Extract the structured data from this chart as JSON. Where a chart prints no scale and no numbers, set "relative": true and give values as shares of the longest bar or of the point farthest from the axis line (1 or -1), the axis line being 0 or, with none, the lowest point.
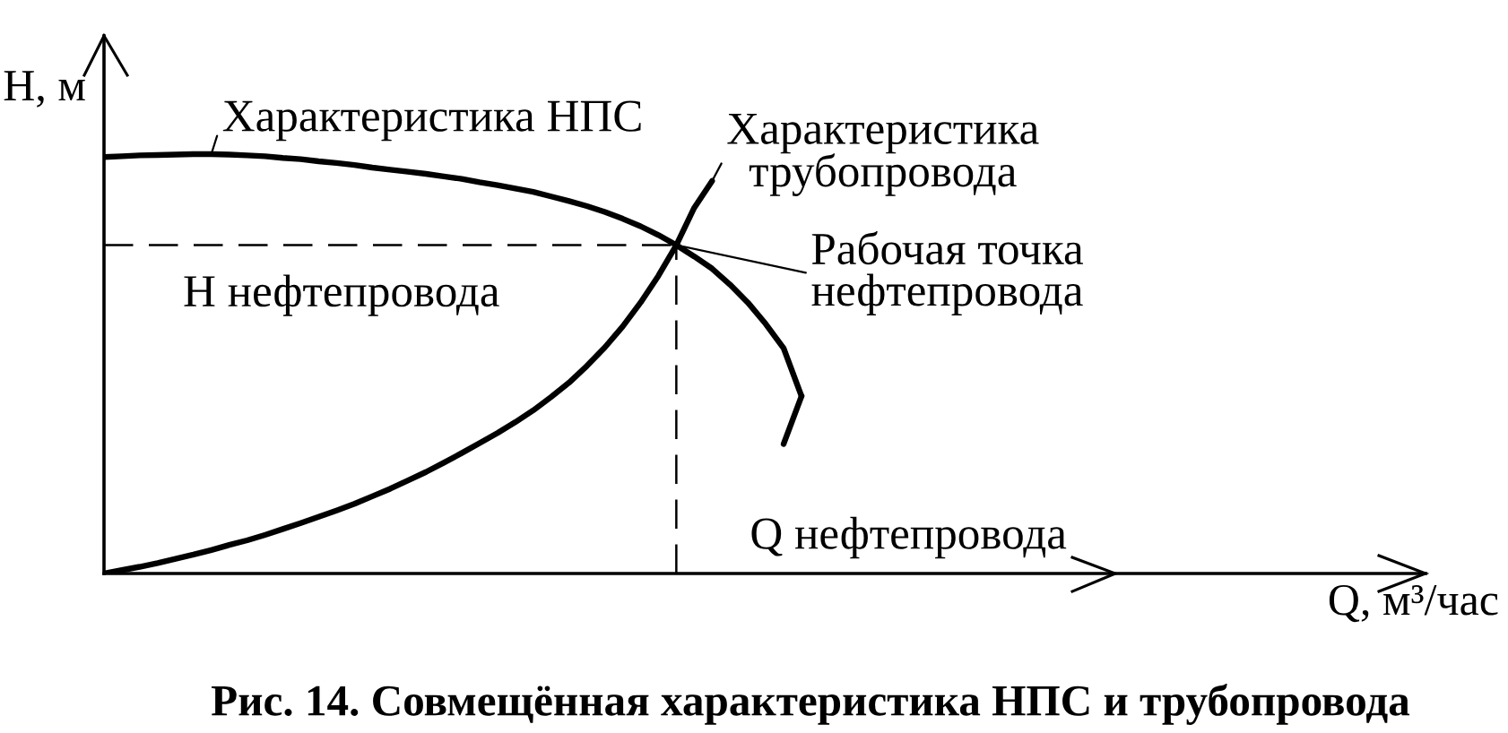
{
  "chart_data": {
    "type": "line",
    "relative": true,
    "title": "Рис. 14. Совмещённая характеристика НПС и трубопровода",
    "ylabel": "H, м",
    "line_style": "solid",
    "legend": "top",
    "categories": [
      null,
      null,
      null,
      null,
      null,
      null,
      null,
      null,
      null,
      null,
      null,
      null,
      null,
      null,
      null,
      null,
      null,
      null,
      null,
      null,
      null,
      null,
      null,
      null,
      null,
      null,
      null,
      null,
      null,
      null,
      null,
      null,
      null,
      null,
      null,
      null,
      null,
      null,
      null,
      null
    ],
    "series": [
      {
        "name": "Характеристика НПС",
        "color": "#000000",
        "values": [
          0.993,
          0.995,
          0.997,
          0.998,
          0.999,
          1.0,
          1.0,
          0.999,
          0.997,
          0.995,
          0.991,
          0.988,
          0.983,
          0.979,
          0.974,
          0.968,
          0.963,
          0.958,
          0.953,
          0.947,
          0.941,
          0.933,
          0.926,
          0.918,
          0.91,
          0.899,
          0.888,
          0.876,
          0.862,
          0.846,
          0.828,
          0.807,
          0.783,
          0.756,
          0.727,
          0.689,
          0.646,
          0.595,
          0.537,
          0.423
        ]
      },
      {
        "name": "Характеристика\nтрубопровода",
        "color": "#000000",
        "values": [
          0,
          0.008,
          0.016,
          0.025,
          0.035,
          0.045,
          0.056,
          0.068,
          0.079,
          0.092,
          0.106,
          0.12,
          0.135,
          0.15,
          0.166,
          0.184,
          0.202,
          0.222,
          0.242,
          0.264,
          0.287,
          0.311,
          0.335,
          0.361,
          0.389,
          0.421,
          0.455,
          0.495,
          0.539,
          0.589,
          0.646,
          0.71,
          0.783,
          0.872,
          0.936,
          null,
          null,
          null,
          null,
          null
        ]
      },
      {
        "color": "#000000",
        "values": [
          null,
          null,
          null,
          null,
          null,
          null,
          null,
          null,
          null,
          null,
          null,
          null,
          null,
          null,
          null,
          null,
          null,
          null,
          null,
          null,
          null,
          null,
          null,
          null,
          null,
          null,
          null,
          null,
          null,
          null,
          null,
          null,
          null,
          null,
          null,
          null,
          null,
          null,
          0.309,
          0.423
        ]
      }
    ],
    "ref_lines": [
      {
        "axis": "y",
        "value": 0.783,
        "label": "H нефтепровода",
        "color": "#000000",
        "line_style": "dashed"
      },
      {
        "axis": "x",
        "label": "Q нефтепровода",
        "color": "#000000",
        "line_style": "dashed"
      }
    ],
    "annotations": [
      "Рабочая точка\nнефтепровода",
      "Q, м³/час"
    ]
  }
}
